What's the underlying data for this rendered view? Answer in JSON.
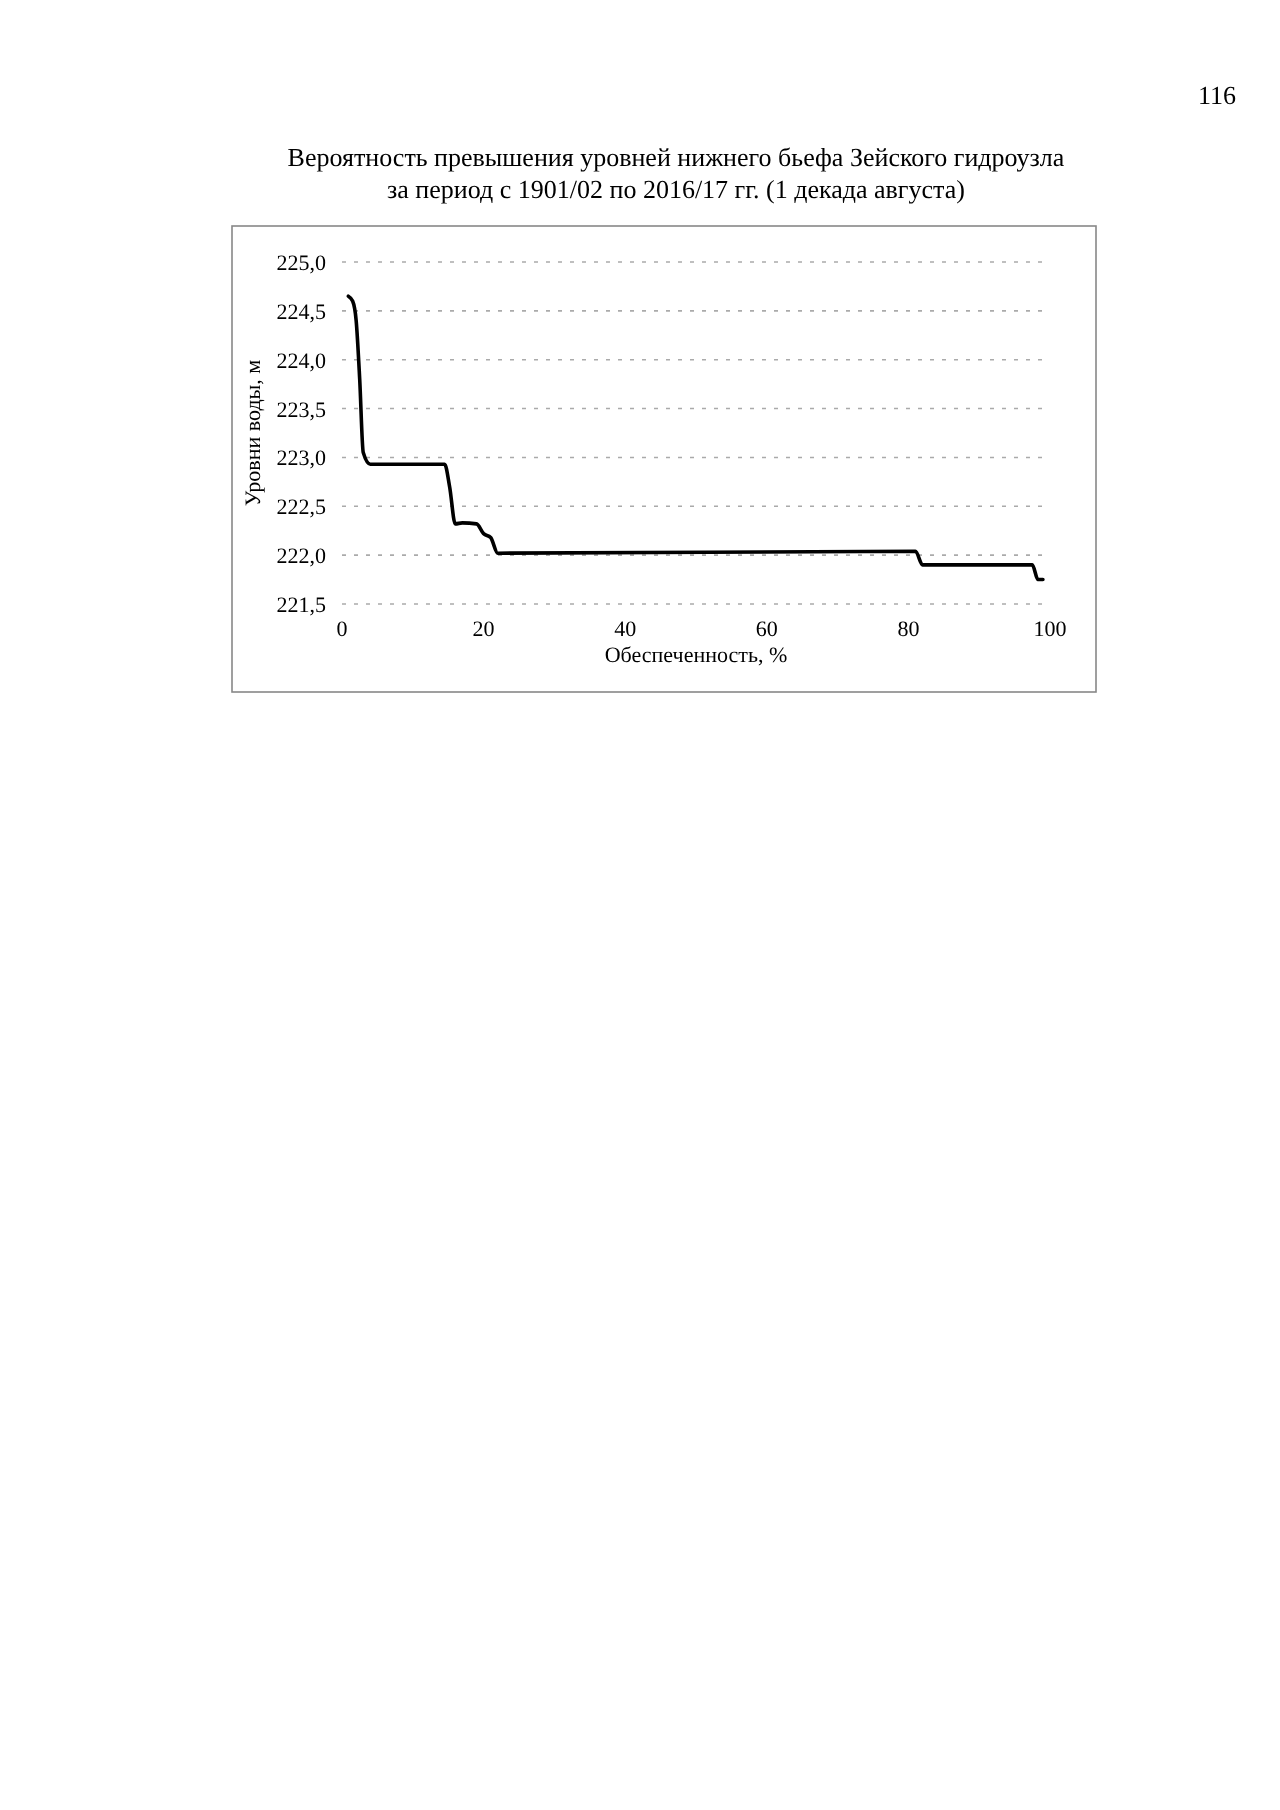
{
  "chart_data": {
    "type": "line",
    "title": "Вероятность превышения уровней нижнего бьефа Зейского гидроузла\nза период с 1901/02 по 2016/17 гг. (1 декада августа)",
    "xlabel": "Обеспеченность, %",
    "ylabel": "Уровни воды, м",
    "annotations": [
      "116"
    ],
    "x": [
      0.9,
      1.5,
      2,
      2.5,
      3,
      4,
      14.5,
      15.2,
      16,
      17,
      19,
      20,
      21,
      22,
      81,
      82,
      97.5,
      98.3,
      99
    ],
    "series": [
      {
        "color": "#000000",
        "values": [
          224.65,
          224.6,
          224.4,
          223.8,
          223.05,
          222.93,
          222.93,
          222.7,
          222.32,
          222.33,
          222.32,
          222.22,
          222.18,
          222.02,
          222.04,
          221.9,
          221.9,
          221.75,
          221.75
        ]
      }
    ],
    "xlim": [
      0,
      100
    ],
    "xticks": [
      0,
      20,
      40,
      60,
      80,
      100
    ],
    "ylim": [
      221.5,
      225
    ],
    "yticks": [
      {
        "value": 221.5,
        "label": "221,5"
      },
      {
        "value": 222,
        "label": "222,0"
      },
      {
        "value": 222.5,
        "label": "222,5"
      },
      {
        "value": 223,
        "label": "223,0"
      },
      {
        "value": 223.5,
        "label": "223,5"
      },
      {
        "value": 224,
        "label": "224,0"
      },
      {
        "value": 224.5,
        "label": "224,5"
      },
      {
        "value": 225,
        "label": "225,0"
      }
    ],
    "grid": "y",
    "marker": "none",
    "line_style": "solid"
  }
}
